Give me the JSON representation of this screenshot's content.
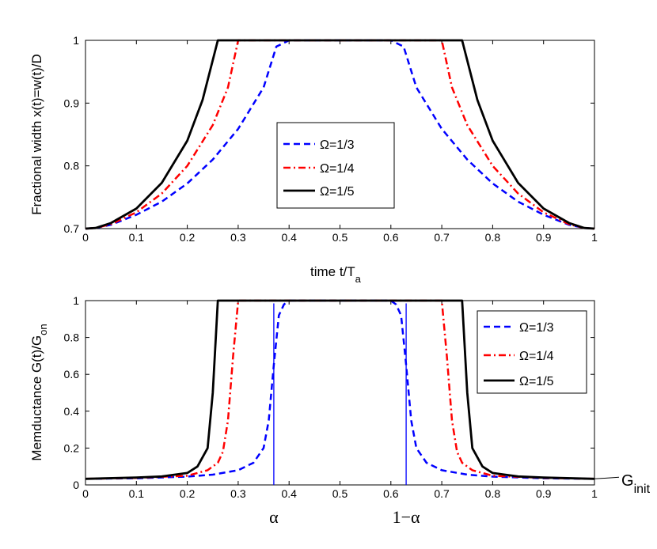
{
  "chart_data": [
    {
      "type": "line",
      "xlabel": "time t/T",
      "xlabel_sub": "a",
      "ylabel": "Fractional width x(t)=w(t)/D",
      "xlim": [
        0,
        1
      ],
      "ylim": [
        0.7,
        1
      ],
      "xticks": [
        0,
        0.1,
        0.2,
        0.3,
        0.4,
        0.5,
        0.6,
        0.7,
        0.8,
        0.9,
        1
      ],
      "xtick_labels": [
        "0",
        "0.1",
        "0.2",
        "0.3",
        "0.4",
        "0.5",
        "0.6",
        "0.7",
        "0.8",
        "0.9",
        "1"
      ],
      "yticks": [
        0.7,
        0.8,
        0.9,
        1
      ],
      "ytick_labels": [
        "0.7",
        "0.8",
        "0.9",
        "1"
      ],
      "legend_position": "center",
      "series": [
        {
          "name": "Ω=1/3",
          "color": "#0000ff",
          "style": "dashed",
          "x": [
            0,
            0.02,
            0.05,
            0.1,
            0.15,
            0.2,
            0.25,
            0.3,
            0.35,
            0.375,
            0.4,
            0.5,
            0.6,
            0.625,
            0.65,
            0.7,
            0.75,
            0.8,
            0.85,
            0.9,
            0.95,
            0.98,
            1
          ],
          "y": [
            0.7,
            0.701,
            0.706,
            0.722,
            0.743,
            0.772,
            0.81,
            0.859,
            0.925,
            0.99,
            1,
            1,
            1,
            0.99,
            0.925,
            0.859,
            0.81,
            0.772,
            0.743,
            0.722,
            0.706,
            0.701,
            0.7
          ]
        },
        {
          "name": "Ω=1/4",
          "color": "#ff0000",
          "style": "dashdot",
          "x": [
            0,
            0.02,
            0.05,
            0.1,
            0.15,
            0.2,
            0.25,
            0.28,
            0.3,
            0.5,
            0.7,
            0.72,
            0.75,
            0.8,
            0.85,
            0.9,
            0.95,
            0.98,
            1
          ],
          "y": [
            0.7,
            0.701,
            0.707,
            0.726,
            0.756,
            0.8,
            0.865,
            0.925,
            1,
            1,
            1,
            0.925,
            0.865,
            0.8,
            0.756,
            0.726,
            0.707,
            0.701,
            0.7
          ]
        },
        {
          "name": "Ω=1/5",
          "color": "#000000",
          "style": "solid",
          "x": [
            0,
            0.02,
            0.05,
            0.1,
            0.15,
            0.2,
            0.23,
            0.26,
            0.5,
            0.74,
            0.77,
            0.8,
            0.85,
            0.9,
            0.95,
            0.98,
            1
          ],
          "y": [
            0.7,
            0.701,
            0.709,
            0.732,
            0.773,
            0.84,
            0.905,
            1,
            1,
            1,
            0.905,
            0.84,
            0.773,
            0.732,
            0.709,
            0.701,
            0.7
          ]
        }
      ]
    },
    {
      "type": "line",
      "ylabel": "Memductance G(t)/G",
      "ylabel_sub": "on",
      "xlim": [
        0,
        1
      ],
      "ylim": [
        0,
        1
      ],
      "xticks": [
        0,
        0.1,
        0.2,
        0.3,
        0.4,
        0.5,
        0.6,
        0.7,
        0.8,
        0.9,
        1
      ],
      "xtick_labels": [
        "0",
        "0.1",
        "0.2",
        "0.3",
        "0.4",
        "0.5",
        "0.6",
        "0.7",
        "0.8",
        "0.9",
        "1"
      ],
      "yticks": [
        0,
        0.2,
        0.4,
        0.6,
        0.8,
        1
      ],
      "ytick_labels": [
        "0",
        "0.2",
        "0.4",
        "0.6",
        "0.8",
        "1"
      ],
      "legend_position": "top-right",
      "annotations": {
        "alpha_label": "α",
        "one_minus_alpha_label": "1−α",
        "alpha_value": 0.37,
        "one_minus_alpha_value": 0.63,
        "g_init_label": "G",
        "g_init_sub": "init",
        "g_init_value": 0.033
      },
      "series": [
        {
          "name": "Ω=1/3",
          "color": "#0000ff",
          "style": "dashed",
          "x": [
            0,
            0.1,
            0.2,
            0.25,
            0.3,
            0.33,
            0.35,
            0.36,
            0.37,
            0.38,
            0.39,
            0.4,
            0.5,
            0.6,
            0.61,
            0.62,
            0.63,
            0.64,
            0.65,
            0.67,
            0.7,
            0.75,
            0.8,
            0.9,
            1
          ],
          "y": [
            0.033,
            0.036,
            0.045,
            0.056,
            0.08,
            0.12,
            0.2,
            0.35,
            0.65,
            0.92,
            0.98,
            1,
            1,
            1,
            0.98,
            0.92,
            0.65,
            0.35,
            0.2,
            0.12,
            0.08,
            0.056,
            0.045,
            0.036,
            0.033
          ]
        },
        {
          "name": "Ω=1/4",
          "color": "#ff0000",
          "style": "dashdot",
          "x": [
            0,
            0.1,
            0.2,
            0.24,
            0.26,
            0.27,
            0.28,
            0.29,
            0.3,
            0.5,
            0.7,
            0.71,
            0.72,
            0.73,
            0.74,
            0.76,
            0.8,
            0.9,
            1
          ],
          "y": [
            0.033,
            0.038,
            0.05,
            0.08,
            0.12,
            0.18,
            0.35,
            0.7,
            1,
            1,
            1,
            0.7,
            0.35,
            0.18,
            0.12,
            0.08,
            0.05,
            0.038,
            0.033
          ]
        },
        {
          "name": "Ω=1/5",
          "color": "#000000",
          "style": "solid",
          "x": [
            0,
            0.1,
            0.15,
            0.2,
            0.22,
            0.24,
            0.25,
            0.26,
            0.5,
            0.74,
            0.75,
            0.76,
            0.78,
            0.8,
            0.85,
            0.9,
            1
          ],
          "y": [
            0.033,
            0.04,
            0.046,
            0.065,
            0.1,
            0.2,
            0.5,
            1,
            1,
            1,
            0.5,
            0.2,
            0.1,
            0.065,
            0.046,
            0.04,
            0.033
          ]
        }
      ]
    }
  ]
}
